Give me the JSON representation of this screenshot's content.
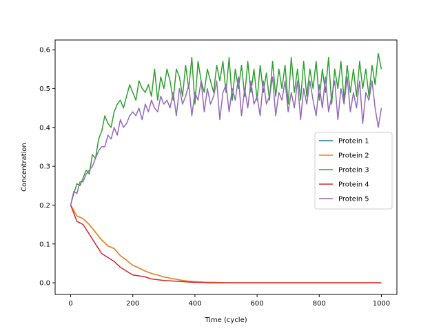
{
  "chart_data": {
    "type": "line",
    "title": "",
    "xlabel": "Time (cycle)",
    "ylabel": "Concentration",
    "xlim": [
      -50,
      1050
    ],
    "ylim": [
      -0.03,
      0.625
    ],
    "xticks": [
      0,
      200,
      400,
      600,
      800,
      1000
    ],
    "yticks": [
      0.0,
      0.1,
      0.2,
      0.3,
      0.4,
      0.5,
      0.6
    ],
    "xtick_labels": [
      "0",
      "200",
      "400",
      "600",
      "800",
      "1000"
    ],
    "ytick_labels": [
      "0.0",
      "0.1",
      "0.2",
      "0.3",
      "0.4",
      "0.5",
      "0.6"
    ],
    "grid": false,
    "legend_position": "center-right",
    "series": [
      {
        "name": "Protein 1",
        "color": "#1f77b4",
        "x": [
          0,
          20,
          40,
          60,
          80,
          100,
          120,
          140,
          160,
          180,
          200,
          220,
          240,
          260,
          280,
          300,
          320,
          340,
          360,
          380,
          400,
          420,
          440,
          460,
          500,
          600,
          700,
          800,
          900,
          1000
        ],
        "y": [
          0.2,
          0.172,
          0.165,
          0.15,
          0.13,
          0.11,
          0.095,
          0.088,
          0.07,
          0.058,
          0.045,
          0.038,
          0.03,
          0.024,
          0.02,
          0.015,
          0.012,
          0.009,
          0.006,
          0.004,
          0.003,
          0.002,
          0.001,
          0.001,
          0.0,
          0.0,
          0.0,
          0.0,
          0.0,
          0.0
        ]
      },
      {
        "name": "Protein 2",
        "color": "#ff7f0e",
        "x": [
          0,
          20,
          40,
          60,
          80,
          100,
          120,
          140,
          160,
          180,
          200,
          220,
          240,
          260,
          280,
          300,
          320,
          340,
          360,
          380,
          400,
          420,
          440,
          460,
          500,
          600,
          700,
          800,
          900,
          1000
        ],
        "y": [
          0.2,
          0.172,
          0.165,
          0.15,
          0.13,
          0.11,
          0.095,
          0.088,
          0.07,
          0.058,
          0.045,
          0.038,
          0.03,
          0.024,
          0.02,
          0.015,
          0.012,
          0.009,
          0.006,
          0.004,
          0.003,
          0.002,
          0.001,
          0.001,
          0.0,
          0.0,
          0.0,
          0.0,
          0.0,
          0.0
        ]
      },
      {
        "name": "Protein 3",
        "color": "#2ca02c",
        "x": [
          0,
          10,
          20,
          30,
          40,
          50,
          60,
          70,
          80,
          90,
          100,
          110,
          120,
          130,
          140,
          150,
          160,
          170,
          180,
          190,
          200,
          210,
          220,
          230,
          240,
          250,
          260,
          270,
          280,
          290,
          300,
          310,
          320,
          330,
          340,
          350,
          360,
          370,
          380,
          390,
          400,
          410,
          420,
          430,
          440,
          450,
          460,
          470,
          480,
          490,
          500,
          510,
          520,
          530,
          540,
          550,
          560,
          570,
          580,
          590,
          600,
          610,
          620,
          630,
          640,
          650,
          660,
          670,
          680,
          690,
          700,
          710,
          720,
          730,
          740,
          750,
          760,
          770,
          780,
          790,
          800,
          810,
          820,
          830,
          840,
          850,
          860,
          870,
          880,
          890,
          900,
          910,
          920,
          930,
          940,
          950,
          960,
          970,
          980,
          990,
          1000
        ],
        "y": [
          0.2,
          0.23,
          0.255,
          0.25,
          0.27,
          0.29,
          0.28,
          0.33,
          0.32,
          0.37,
          0.39,
          0.43,
          0.41,
          0.4,
          0.44,
          0.46,
          0.47,
          0.45,
          0.48,
          0.51,
          0.49,
          0.47,
          0.52,
          0.5,
          0.49,
          0.51,
          0.48,
          0.55,
          0.47,
          0.53,
          0.5,
          0.55,
          0.52,
          0.47,
          0.55,
          0.53,
          0.48,
          0.56,
          0.5,
          0.58,
          0.46,
          0.57,
          0.52,
          0.49,
          0.55,
          0.52,
          0.49,
          0.56,
          0.52,
          0.57,
          0.49,
          0.58,
          0.47,
          0.55,
          0.5,
          0.56,
          0.48,
          0.57,
          0.49,
          0.55,
          0.47,
          0.56,
          0.49,
          0.54,
          0.47,
          0.57,
          0.48,
          0.55,
          0.5,
          0.56,
          0.46,
          0.58,
          0.49,
          0.55,
          0.47,
          0.57,
          0.48,
          0.55,
          0.5,
          0.57,
          0.47,
          0.55,
          0.49,
          0.58,
          0.46,
          0.55,
          0.5,
          0.57,
          0.47,
          0.56,
          0.49,
          0.55,
          0.48,
          0.57,
          0.5,
          0.55,
          0.48,
          0.56,
          0.51,
          0.59,
          0.55
        ]
      },
      {
        "name": "Protein 4",
        "color": "#d62728",
        "x": [
          0,
          20,
          40,
          60,
          80,
          100,
          120,
          140,
          160,
          180,
          200,
          220,
          240,
          260,
          280,
          300,
          320,
          340,
          360,
          380,
          400,
          420,
          440,
          500,
          600,
          700,
          800,
          900,
          1000
        ],
        "y": [
          0.2,
          0.158,
          0.15,
          0.125,
          0.1,
          0.075,
          0.065,
          0.055,
          0.04,
          0.03,
          0.02,
          0.018,
          0.015,
          0.01,
          0.008,
          0.006,
          0.005,
          0.004,
          0.003,
          0.002,
          0.001,
          0.001,
          0.0,
          0.0,
          0.0,
          0.0,
          0.0,
          0.0,
          0.0
        ]
      },
      {
        "name": "Protein 5",
        "color": "#9467bd",
        "x": [
          0,
          10,
          20,
          30,
          40,
          50,
          60,
          70,
          80,
          90,
          100,
          110,
          120,
          130,
          140,
          150,
          160,
          170,
          180,
          190,
          200,
          210,
          220,
          230,
          240,
          250,
          260,
          270,
          280,
          290,
          300,
          310,
          320,
          330,
          340,
          350,
          360,
          370,
          380,
          390,
          400,
          410,
          420,
          430,
          440,
          450,
          460,
          470,
          480,
          490,
          500,
          510,
          520,
          530,
          540,
          550,
          560,
          570,
          580,
          590,
          600,
          610,
          620,
          630,
          640,
          650,
          660,
          670,
          680,
          690,
          700,
          710,
          720,
          730,
          740,
          750,
          760,
          770,
          780,
          790,
          800,
          810,
          820,
          830,
          840,
          850,
          860,
          870,
          880,
          890,
          900,
          910,
          920,
          930,
          940,
          950,
          960,
          970,
          980,
          990,
          1000
        ],
        "y": [
          0.2,
          0.235,
          0.23,
          0.26,
          0.26,
          0.28,
          0.29,
          0.3,
          0.32,
          0.34,
          0.35,
          0.35,
          0.38,
          0.37,
          0.4,
          0.38,
          0.42,
          0.4,
          0.41,
          0.43,
          0.44,
          0.43,
          0.45,
          0.42,
          0.46,
          0.44,
          0.47,
          0.45,
          0.44,
          0.48,
          0.46,
          0.47,
          0.45,
          0.49,
          0.43,
          0.5,
          0.46,
          0.48,
          0.51,
          0.43,
          0.49,
          0.47,
          0.52,
          0.44,
          0.5,
          0.46,
          0.48,
          0.52,
          0.42,
          0.49,
          0.51,
          0.44,
          0.5,
          0.47,
          0.53,
          0.43,
          0.5,
          0.45,
          0.52,
          0.46,
          0.48,
          0.43,
          0.52,
          0.46,
          0.48,
          0.53,
          0.43,
          0.49,
          0.47,
          0.52,
          0.44,
          0.49,
          0.45,
          0.52,
          0.42,
          0.5,
          0.46,
          0.52,
          0.47,
          0.43,
          0.51,
          0.45,
          0.53,
          0.44,
          0.48,
          0.52,
          0.42,
          0.5,
          0.46,
          0.53,
          0.44,
          0.49,
          0.45,
          0.52,
          0.41,
          0.49,
          0.47,
          0.52,
          0.45,
          0.4,
          0.45
        ]
      }
    ]
  }
}
